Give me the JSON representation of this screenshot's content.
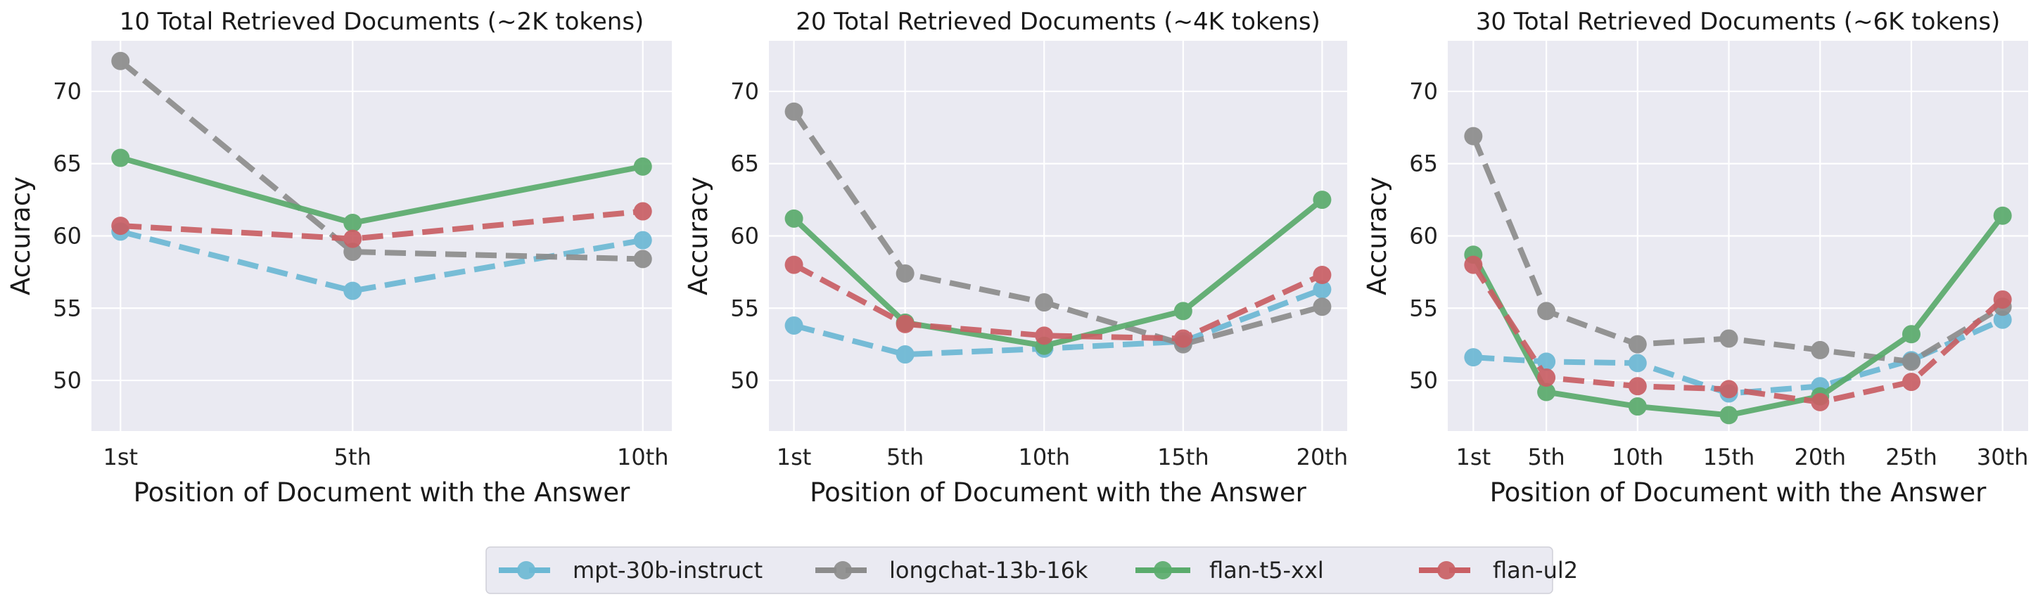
{
  "colors": {
    "mpt-30b-instruct": "#6cb8d4",
    "longchat-13b-16k": "#8c8c8c",
    "flan-t5-xxl": "#5aab6c",
    "flan-ul2": "#c95f64",
    "plot_bg": "#eaeaf2",
    "grid": "#ffffff"
  },
  "legend": {
    "entries": [
      {
        "name": "mpt-30b-instruct",
        "style": "dashed"
      },
      {
        "name": "longchat-13b-16k",
        "style": "dashed"
      },
      {
        "name": "flan-t5-xxl",
        "style": "solid"
      },
      {
        "name": "flan-ul2",
        "style": "dashed"
      }
    ],
    "placement": "bottom-center"
  },
  "chart_data": [
    {
      "type": "line",
      "title": "10 Total Retrieved Documents (~2K tokens)",
      "xlabel": "Position of Document with the Answer",
      "ylabel": "Accuracy",
      "x": [
        1,
        5,
        10
      ],
      "xticks": [
        "1st",
        "5th",
        "10th"
      ],
      "xlim": [
        0.5,
        10.5
      ],
      "ylim": [
        46.5,
        73.5
      ],
      "yticks": [
        50,
        55,
        60,
        65,
        70
      ],
      "series": [
        {
          "name": "mpt-30b-instruct",
          "values": [
            60.3,
            56.2,
            59.7
          ]
        },
        {
          "name": "longchat-13b-16k",
          "values": [
            72.1,
            58.9,
            58.4
          ]
        },
        {
          "name": "flan-t5-xxl",
          "values": [
            65.4,
            60.9,
            64.8
          ]
        },
        {
          "name": "flan-ul2",
          "values": [
            60.7,
            59.8,
            61.7
          ]
        }
      ]
    },
    {
      "type": "line",
      "title": "20 Total Retrieved Documents (~4K tokens)",
      "xlabel": "Position of Document with the Answer",
      "ylabel": "Accuracy",
      "x": [
        1,
        5,
        10,
        15,
        20
      ],
      "xticks": [
        "1st",
        "5th",
        "10th",
        "15th",
        "20th"
      ],
      "xlim": [
        0.1,
        20.9
      ],
      "ylim": [
        46.5,
        73.5
      ],
      "yticks": [
        50,
        55,
        60,
        65,
        70
      ],
      "series": [
        {
          "name": "mpt-30b-instruct",
          "values": [
            53.8,
            51.8,
            52.2,
            52.7,
            56.3
          ]
        },
        {
          "name": "longchat-13b-16k",
          "values": [
            68.6,
            57.4,
            55.4,
            52.5,
            55.1
          ]
        },
        {
          "name": "flan-t5-xxl",
          "values": [
            61.2,
            54.0,
            52.4,
            54.8,
            62.5
          ]
        },
        {
          "name": "flan-ul2",
          "values": [
            58.0,
            53.9,
            53.1,
            52.9,
            57.3
          ]
        }
      ]
    },
    {
      "type": "line",
      "title": "30 Total Retrieved Documents (~6K tokens)",
      "xlabel": "Position of Document with the Answer",
      "ylabel": "Accuracy",
      "x": [
        1,
        5,
        10,
        15,
        20,
        25,
        30
      ],
      "xticks": [
        "1st",
        "5th",
        "10th",
        "15th",
        "20th",
        "25th",
        "30th"
      ],
      "xlim": [
        -0.4,
        31.4
      ],
      "ylim": [
        46.5,
        73.5
      ],
      "yticks": [
        50,
        55,
        60,
        65,
        70
      ],
      "series": [
        {
          "name": "mpt-30b-instruct",
          "values": [
            51.6,
            51.3,
            51.2,
            49.1,
            49.6,
            51.4,
            54.2
          ]
        },
        {
          "name": "longchat-13b-16k",
          "values": [
            66.9,
            54.8,
            52.5,
            52.9,
            52.1,
            51.3,
            55.1
          ]
        },
        {
          "name": "flan-t5-xxl",
          "values": [
            58.7,
            49.2,
            48.2,
            47.6,
            48.9,
            53.2,
            61.4
          ]
        },
        {
          "name": "flan-ul2",
          "values": [
            58.0,
            50.2,
            49.6,
            49.4,
            48.5,
            49.9,
            55.6
          ]
        }
      ]
    }
  ]
}
